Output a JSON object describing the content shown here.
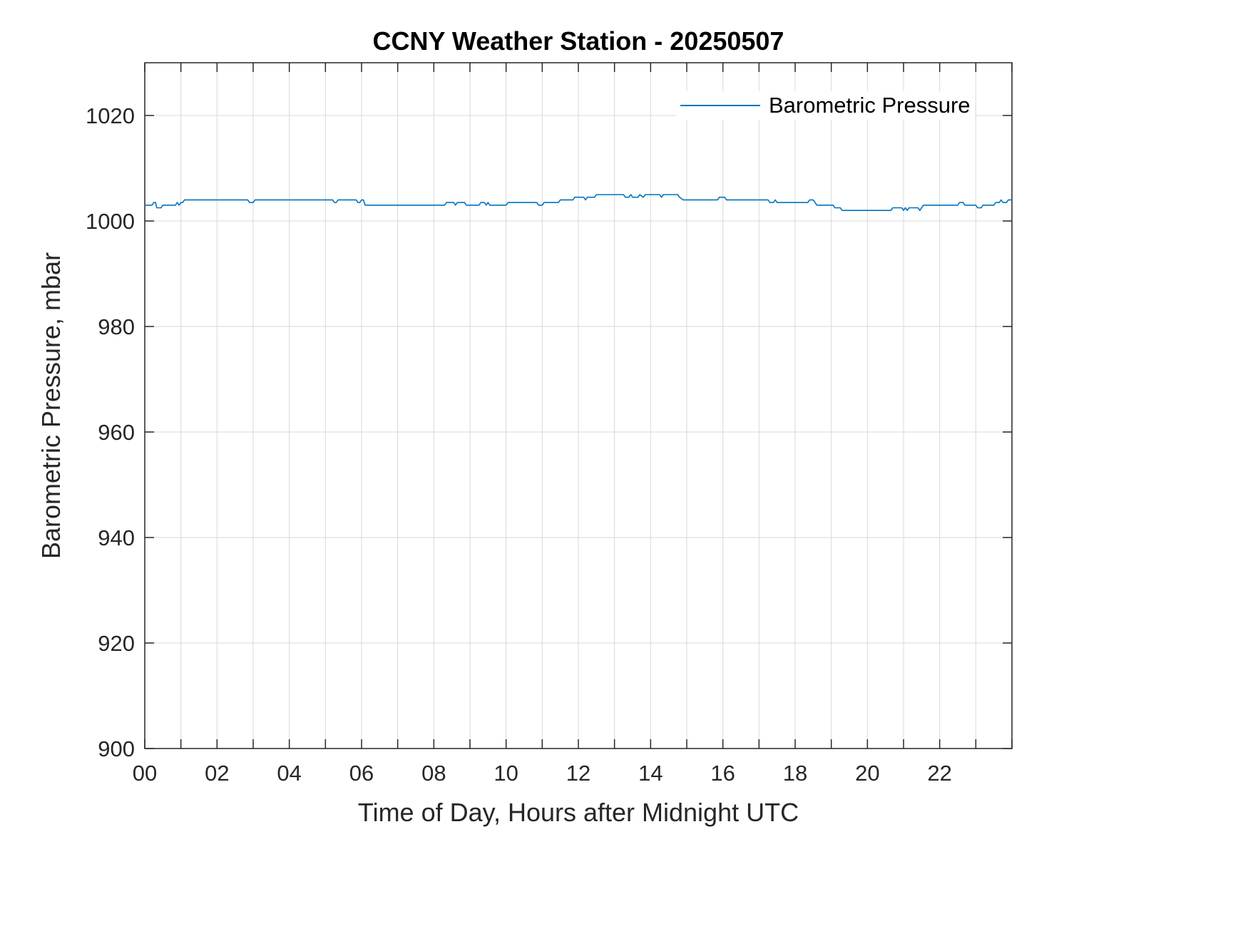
{
  "chart_data": {
    "type": "line",
    "title": "CCNY Weather Station - 20250507",
    "xlabel": "Time of Day, Hours after Midnight UTC",
    "ylabel": "Barometric Pressure, mbar",
    "legend": {
      "label": "Barometric Pressure",
      "position": "top-right",
      "border": false
    },
    "grid": true,
    "xlim": [
      0,
      24
    ],
    "ylim": [
      900,
      1030
    ],
    "xticks": [
      0,
      2,
      4,
      6,
      8,
      10,
      12,
      14,
      16,
      18,
      20,
      22
    ],
    "xtick_labels": [
      "00",
      "02",
      "04",
      "06",
      "08",
      "10",
      "12",
      "14",
      "16",
      "18",
      "20",
      "22"
    ],
    "minor_xtick_step": 1,
    "yticks": [
      900,
      920,
      940,
      960,
      980,
      1000,
      1020
    ],
    "ytick_labels": [
      "900",
      "920",
      "940",
      "960",
      "980",
      "1000",
      "1020"
    ],
    "colors": {
      "line": "#0072BD",
      "axis": "#262626",
      "grid": "#d9d9d9"
    },
    "series": [
      {
        "name": "Barometric Pressure",
        "points": [
          [
            0,
            1003
          ],
          [
            0.2,
            1003
          ],
          [
            0.25,
            1003.5
          ],
          [
            0.3,
            1003.5
          ],
          [
            0.33,
            1002.5
          ],
          [
            0.45,
            1002.5
          ],
          [
            0.5,
            1003
          ],
          [
            0.85,
            1003
          ],
          [
            0.9,
            1003.5
          ],
          [
            0.95,
            1003
          ],
          [
            1.0,
            1003.5
          ],
          [
            1.05,
            1003.5
          ],
          [
            1.1,
            1004
          ],
          [
            2.85,
            1004
          ],
          [
            2.9,
            1003.5
          ],
          [
            3.0,
            1003.5
          ],
          [
            3.05,
            1004
          ],
          [
            5.2,
            1004
          ],
          [
            5.25,
            1003.5
          ],
          [
            5.3,
            1003.5
          ],
          [
            5.35,
            1004
          ],
          [
            5.85,
            1004
          ],
          [
            5.9,
            1003.5
          ],
          [
            5.95,
            1003.5
          ],
          [
            6.0,
            1004
          ],
          [
            6.05,
            1004
          ],
          [
            6.1,
            1003
          ],
          [
            8.3,
            1003
          ],
          [
            8.35,
            1003.5
          ],
          [
            8.55,
            1003.5
          ],
          [
            8.6,
            1003
          ],
          [
            8.65,
            1003.5
          ],
          [
            8.85,
            1003.5
          ],
          [
            8.9,
            1003
          ],
          [
            9.25,
            1003
          ],
          [
            9.3,
            1003.5
          ],
          [
            9.4,
            1003.5
          ],
          [
            9.45,
            1003
          ],
          [
            9.5,
            1003.5
          ],
          [
            9.55,
            1003
          ],
          [
            10.0,
            1003
          ],
          [
            10.05,
            1003.5
          ],
          [
            10.85,
            1003.5
          ],
          [
            10.9,
            1003
          ],
          [
            11.0,
            1003
          ],
          [
            11.05,
            1003.5
          ],
          [
            11.45,
            1003.5
          ],
          [
            11.5,
            1004
          ],
          [
            11.85,
            1004
          ],
          [
            11.9,
            1004.5
          ],
          [
            12.15,
            1004.5
          ],
          [
            12.2,
            1004
          ],
          [
            12.25,
            1004.5
          ],
          [
            12.45,
            1004.5
          ],
          [
            12.5,
            1005
          ],
          [
            13.25,
            1005
          ],
          [
            13.3,
            1004.5
          ],
          [
            13.4,
            1004.5
          ],
          [
            13.45,
            1005
          ],
          [
            13.5,
            1004.5
          ],
          [
            13.65,
            1004.5
          ],
          [
            13.7,
            1005
          ],
          [
            13.8,
            1004.5
          ],
          [
            13.85,
            1005
          ],
          [
            14.25,
            1005
          ],
          [
            14.3,
            1004.5
          ],
          [
            14.35,
            1005
          ],
          [
            14.75,
            1005
          ],
          [
            14.8,
            1004.5
          ],
          [
            14.9,
            1004
          ],
          [
            15.85,
            1004
          ],
          [
            15.9,
            1004.5
          ],
          [
            16.05,
            1004.5
          ],
          [
            16.1,
            1004
          ],
          [
            17.25,
            1004
          ],
          [
            17.3,
            1003.5
          ],
          [
            17.4,
            1003.5
          ],
          [
            17.45,
            1004
          ],
          [
            17.5,
            1003.5
          ],
          [
            18.35,
            1003.5
          ],
          [
            18.4,
            1004
          ],
          [
            18.5,
            1004
          ],
          [
            18.55,
            1003.5
          ],
          [
            18.6,
            1003
          ],
          [
            19.05,
            1003
          ],
          [
            19.1,
            1002.5
          ],
          [
            19.25,
            1002.5
          ],
          [
            19.3,
            1002
          ],
          [
            20.65,
            1002
          ],
          [
            20.7,
            1002.5
          ],
          [
            20.95,
            1002.5
          ],
          [
            21.0,
            1002
          ],
          [
            21.05,
            1002.5
          ],
          [
            21.1,
            1002
          ],
          [
            21.15,
            1002.5
          ],
          [
            21.4,
            1002.5
          ],
          [
            21.45,
            1002
          ],
          [
            21.5,
            1002.5
          ],
          [
            21.55,
            1003
          ],
          [
            22.5,
            1003
          ],
          [
            22.55,
            1003.5
          ],
          [
            22.65,
            1003.5
          ],
          [
            22.7,
            1003
          ],
          [
            23.0,
            1003
          ],
          [
            23.05,
            1002.5
          ],
          [
            23.15,
            1002.5
          ],
          [
            23.2,
            1003
          ],
          [
            23.5,
            1003
          ],
          [
            23.55,
            1003.5
          ],
          [
            23.65,
            1003.5
          ],
          [
            23.7,
            1004
          ],
          [
            23.75,
            1003.5
          ],
          [
            23.85,
            1003.5
          ],
          [
            23.9,
            1004
          ],
          [
            24,
            1004
          ]
        ]
      }
    ]
  }
}
